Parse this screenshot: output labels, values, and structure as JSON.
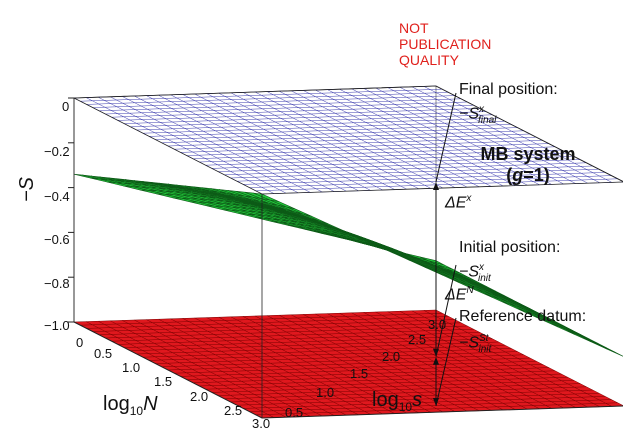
{
  "chart_data": {
    "type": "surface3d",
    "title": "",
    "axes": {
      "x": {
        "label_prefix": "log",
        "label_sub": "10",
        "label_var": "N",
        "range": [
          0,
          3.0
        ],
        "ticks": [
          "0",
          "0.5",
          "1.0",
          "1.5",
          "2.0",
          "2.5",
          "3.0"
        ]
      },
      "y": {
        "label_prefix": "log",
        "label_sub": "10",
        "label_var": "s",
        "range": [
          0,
          3.0
        ],
        "ticks": [
          "0.5",
          "1.0",
          "1.5",
          "2.0",
          "2.5",
          "3.0"
        ]
      },
      "z": {
        "label": "−S",
        "range": [
          -1.0,
          0
        ],
        "ticks": [
          "0",
          "−0.2",
          "−0.4",
          "−0.6",
          "−0.8",
          "−1.0"
        ]
      }
    },
    "surfaces": [
      {
        "name": "final",
        "color": "#1a1aa0",
        "z": 0,
        "style": "mesh"
      },
      {
        "name": "initial",
        "color": "#22c53a",
        "style": "filled-mesh",
        "corner_values": {
          "N0_s0": -0.34,
          "N3_s0": 0.0,
          "N0_s3": -0.78,
          "N3_s3": -0.78
        }
      },
      {
        "name": "reference",
        "color": "#e0181e",
        "z": -1.0,
        "style": "filled-mesh"
      }
    ]
  },
  "annotations": {
    "warning": [
      "NOT",
      "PUBLICATION",
      "QUALITY"
    ],
    "final_label": "Final position:",
    "final_symbol": {
      "minus": "−",
      "base": "S",
      "sup": "x",
      "sub": "final"
    },
    "system_title": "MB system",
    "system_param_prefix": "(",
    "system_param_var": "g",
    "system_param_rest": "=1)",
    "delta_ex": {
      "base": "ΔE",
      "sup": "x"
    },
    "initial_label": "Initial position:",
    "initial_symbol": {
      "minus": "−",
      "base": "S",
      "sup": "x",
      "sub": "init"
    },
    "delta_en": {
      "base": "ΔE",
      "sup": "N"
    },
    "reference_label": "Reference datum:",
    "reference_symbol": {
      "minus": "−",
      "base": "S",
      "sup": "St",
      "sub": "init"
    }
  }
}
